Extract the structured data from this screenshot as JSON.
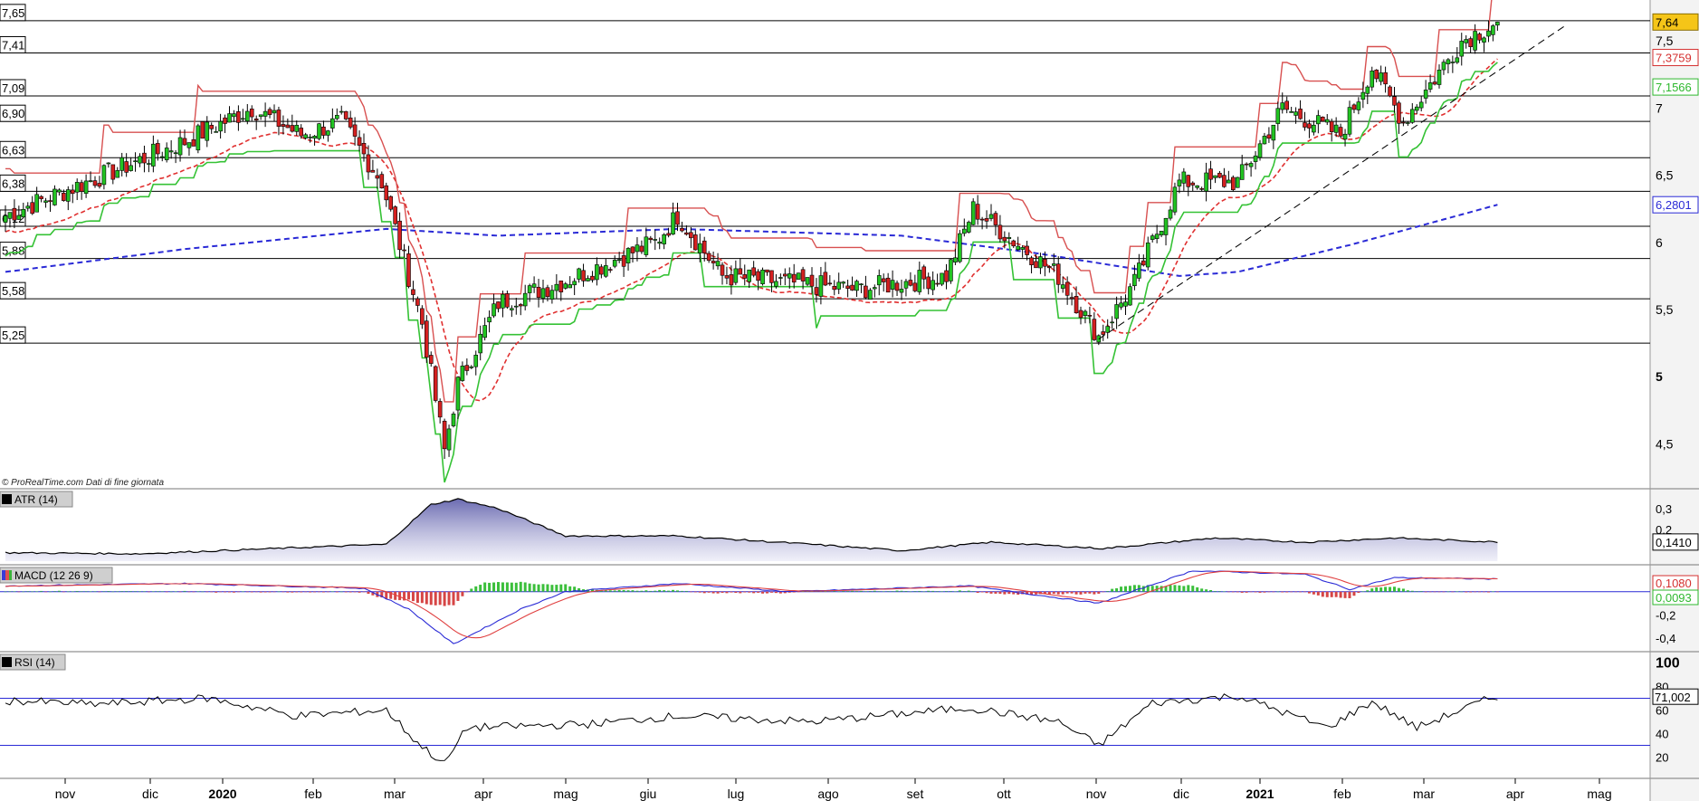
{
  "chart_data": {
    "type": "candlestick",
    "source_note": "© ProRealTime.com  Dati di fine giornata",
    "time_axis": {
      "labels": [
        {
          "text": "nov",
          "major": false
        },
        {
          "text": "dic",
          "major": false
        },
        {
          "text": "2020",
          "major": true
        },
        {
          "text": "feb",
          "major": false
        },
        {
          "text": "mar",
          "major": false
        },
        {
          "text": "apr",
          "major": false
        },
        {
          "text": "mag",
          "major": false
        },
        {
          "text": "giu",
          "major": false
        },
        {
          "text": "lug",
          "major": false
        },
        {
          "text": "ago",
          "major": false
        },
        {
          "text": "set",
          "major": false
        },
        {
          "text": "ott",
          "major": false
        },
        {
          "text": "nov",
          "major": false
        },
        {
          "text": "dic",
          "major": false
        },
        {
          "text": "2021",
          "major": true
        },
        {
          "text": "feb",
          "major": false
        },
        {
          "text": "mar",
          "major": false
        },
        {
          "text": "apr",
          "major": false
        },
        {
          "text": "mag",
          "major": false
        }
      ]
    },
    "price_panel": {
      "ylim": [
        4.2,
        7.75
      ],
      "ticks": [
        {
          "label": "7,5",
          "value": 7.5,
          "bold": false
        },
        {
          "label": "7",
          "value": 7.0,
          "bold": false
        },
        {
          "label": "6,5",
          "value": 6.5,
          "bold": false
        },
        {
          "label": "6",
          "value": 6.0,
          "bold": false
        },
        {
          "label": "5,5",
          "value": 5.5,
          "bold": false
        },
        {
          "label": "5",
          "value": 5.0,
          "bold": true
        },
        {
          "label": "4,5",
          "value": 4.5,
          "bold": false
        }
      ],
      "support_resistance": [
        {
          "label": "7,65",
          "value": 7.65
        },
        {
          "label": "7,41",
          "value": 7.41
        },
        {
          "label": "7,09",
          "value": 7.09
        },
        {
          "label": "6,90",
          "value": 6.9
        },
        {
          "label": "6,63",
          "value": 6.63
        },
        {
          "label": "6,38",
          "value": 6.38
        },
        {
          "label": "6,12",
          "value": 6.12
        },
        {
          "label": "5,88",
          "value": 5.88
        },
        {
          "label": "5,58",
          "value": 5.58
        },
        {
          "label": "5,25",
          "value": 5.25
        }
      ],
      "last_values": [
        {
          "label": "7,64",
          "value": 7.64,
          "style": "price"
        },
        {
          "label": "7,3759",
          "value": 7.3759,
          "style": "red"
        },
        {
          "label": "7,1566",
          "value": 7.1566,
          "style": "green"
        },
        {
          "label": "6,2801",
          "value": 6.2801,
          "style": "blue"
        }
      ],
      "key_points": [
        {
          "date_index": 0,
          "close": 6.2
        },
        {
          "date_index": 40,
          "close": 6.75
        },
        {
          "date_index": 55,
          "close": 7.0
        },
        {
          "date_index": 66,
          "close": 6.8
        },
        {
          "date_index": 75,
          "close": 6.9
        },
        {
          "date_index": 84,
          "close": 6.45
        },
        {
          "date_index": 93,
          "close": 5.4
        },
        {
          "date_index": 98,
          "close": 4.45
        },
        {
          "date_index": 101,
          "close": 4.95
        },
        {
          "date_index": 110,
          "close": 5.55
        },
        {
          "date_index": 124,
          "close": 5.7
        },
        {
          "date_index": 145,
          "close": 6.0
        },
        {
          "date_index": 150,
          "close": 6.2
        },
        {
          "date_index": 160,
          "close": 5.75
        },
        {
          "date_index": 190,
          "close": 5.65
        },
        {
          "date_index": 210,
          "close": 5.75
        },
        {
          "date_index": 216,
          "close": 6.25
        },
        {
          "date_index": 235,
          "close": 5.75
        },
        {
          "date_index": 244,
          "close": 5.3
        },
        {
          "date_index": 252,
          "close": 5.7
        },
        {
          "date_index": 262,
          "close": 6.45
        },
        {
          "date_index": 275,
          "close": 6.45
        },
        {
          "date_index": 285,
          "close": 7.0
        },
        {
          "date_index": 298,
          "close": 6.8
        },
        {
          "date_index": 305,
          "close": 7.3
        },
        {
          "date_index": 312,
          "close": 6.9
        },
        {
          "date_index": 325,
          "close": 7.5
        },
        {
          "date_index": 333,
          "close": 7.64
        }
      ],
      "sma200_points": [
        {
          "date_index": 0,
          "value": 5.78
        },
        {
          "date_index": 40,
          "value": 5.95
        },
        {
          "date_index": 85,
          "value": 6.1
        },
        {
          "date_index": 110,
          "value": 6.05
        },
        {
          "date_index": 150,
          "value": 6.1
        },
        {
          "date_index": 200,
          "value": 6.05
        },
        {
          "date_index": 230,
          "value": 5.92
        },
        {
          "date_index": 262,
          "value": 5.75
        },
        {
          "date_index": 275,
          "value": 5.78
        },
        {
          "date_index": 300,
          "value": 5.98
        },
        {
          "date_index": 333,
          "value": 6.28
        }
      ],
      "trendline": {
        "start": {
          "date_index": 244,
          "value": 5.28
        },
        "end": {
          "date_index": 348,
          "value": 7.61
        }
      }
    },
    "atr_panel": {
      "label": "ATR (14)",
      "ticks": [
        {
          "label": "0,3",
          "value": 0.3
        },
        {
          "label": "0,2",
          "value": 0.2
        }
      ],
      "ylim": [
        0.05,
        0.36
      ],
      "last_value_label": "0,1410",
      "points": [
        {
          "date_index": 0,
          "value": 0.09
        },
        {
          "date_index": 30,
          "value": 0.085
        },
        {
          "date_index": 60,
          "value": 0.11
        },
        {
          "date_index": 85,
          "value": 0.13
        },
        {
          "date_index": 95,
          "value": 0.32
        },
        {
          "date_index": 101,
          "value": 0.345
        },
        {
          "date_index": 110,
          "value": 0.3
        },
        {
          "date_index": 125,
          "value": 0.17
        },
        {
          "date_index": 150,
          "value": 0.17
        },
        {
          "date_index": 180,
          "value": 0.13
        },
        {
          "date_index": 200,
          "value": 0.1
        },
        {
          "date_index": 220,
          "value": 0.14
        },
        {
          "date_index": 245,
          "value": 0.11
        },
        {
          "date_index": 270,
          "value": 0.16
        },
        {
          "date_index": 290,
          "value": 0.14
        },
        {
          "date_index": 310,
          "value": 0.16
        },
        {
          "date_index": 333,
          "value": 0.141
        }
      ]
    },
    "macd_panel": {
      "label": "MACD (12 26 9)",
      "ticks": [
        {
          "label": "-0,2",
          "value": -0.2
        },
        {
          "label": "-0,4",
          "value": -0.4
        }
      ],
      "ylim": [
        -0.5,
        0.2
      ],
      "last_value_labels": [
        {
          "label": "0,1080",
          "value": 0.108,
          "style": "red"
        },
        {
          "label": "0,0093",
          "value": 0.0093,
          "style": "green"
        }
      ],
      "macd_points": [
        {
          "date_index": 0,
          "value": 0.05
        },
        {
          "date_index": 40,
          "value": 0.07
        },
        {
          "date_index": 80,
          "value": 0.03
        },
        {
          "date_index": 90,
          "value": -0.15
        },
        {
          "date_index": 100,
          "value": -0.45
        },
        {
          "date_index": 115,
          "value": -0.15
        },
        {
          "date_index": 125,
          "value": 0.0
        },
        {
          "date_index": 150,
          "value": 0.07
        },
        {
          "date_index": 175,
          "value": 0.0
        },
        {
          "date_index": 215,
          "value": 0.05
        },
        {
          "date_index": 244,
          "value": -0.1
        },
        {
          "date_index": 265,
          "value": 0.18
        },
        {
          "date_index": 290,
          "value": 0.15
        },
        {
          "date_index": 300,
          "value": 0.02
        },
        {
          "date_index": 310,
          "value": 0.12
        },
        {
          "date_index": 333,
          "value": 0.108
        }
      ]
    },
    "rsi_panel": {
      "label": "RSI (14)",
      "ticks": [
        {
          "label": "100",
          "value": 100,
          "bold": true
        },
        {
          "label": "60",
          "value": 60,
          "bold": false
        },
        {
          "label": "40",
          "value": 40,
          "bold": false
        },
        {
          "label": "20",
          "value": 20,
          "bold": false
        }
      ],
      "ylim": [
        5,
        105
      ],
      "last_value_label": "71,002",
      "overlay_value_label": "80",
      "reference_lines": [
        70,
        30
      ],
      "points": [
        {
          "date_index": 0,
          "value": 68
        },
        {
          "date_index": 20,
          "value": 65
        },
        {
          "date_index": 45,
          "value": 70
        },
        {
          "date_index": 65,
          "value": 55
        },
        {
          "date_index": 85,
          "value": 60
        },
        {
          "date_index": 92,
          "value": 32
        },
        {
          "date_index": 98,
          "value": 14
        },
        {
          "date_index": 103,
          "value": 45
        },
        {
          "date_index": 130,
          "value": 48
        },
        {
          "date_index": 150,
          "value": 55
        },
        {
          "date_index": 180,
          "value": 50
        },
        {
          "date_index": 215,
          "value": 62
        },
        {
          "date_index": 235,
          "value": 50
        },
        {
          "date_index": 244,
          "value": 30
        },
        {
          "date_index": 256,
          "value": 66
        },
        {
          "date_index": 275,
          "value": 72
        },
        {
          "date_index": 295,
          "value": 45
        },
        {
          "date_index": 305,
          "value": 67
        },
        {
          "date_index": 315,
          "value": 45
        },
        {
          "date_index": 330,
          "value": 68
        },
        {
          "date_index": 333,
          "value": 71
        }
      ]
    }
  }
}
